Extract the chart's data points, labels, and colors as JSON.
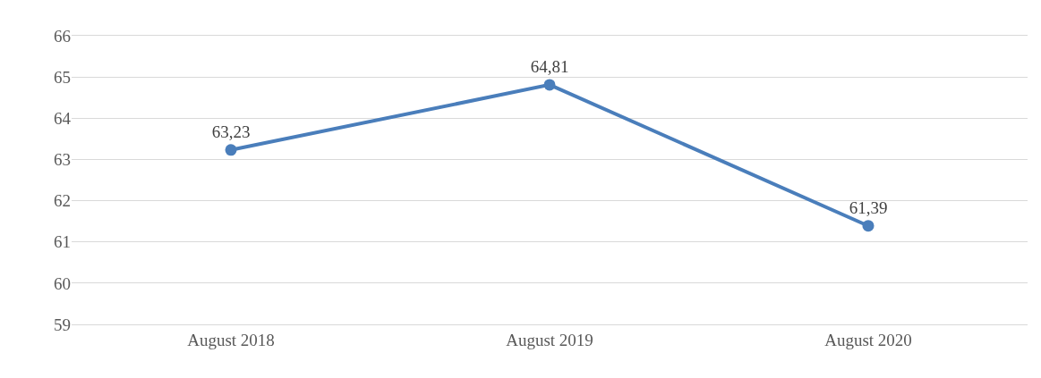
{
  "chart_data": {
    "type": "line",
    "categories": [
      "August 2018",
      "August 2019",
      "August 2020"
    ],
    "series": [
      {
        "color": "#4a7ebb",
        "values": [
          63.23,
          64.81,
          61.39
        ],
        "value_labels": [
          "63,23",
          "64,81",
          "61,39"
        ]
      }
    ],
    "ylim": [
      59,
      66
    ],
    "yticks": [
      59,
      60,
      61,
      62,
      63,
      64,
      65,
      66
    ],
    "grid": "y",
    "marker": "circle",
    "line_style": "solid"
  }
}
